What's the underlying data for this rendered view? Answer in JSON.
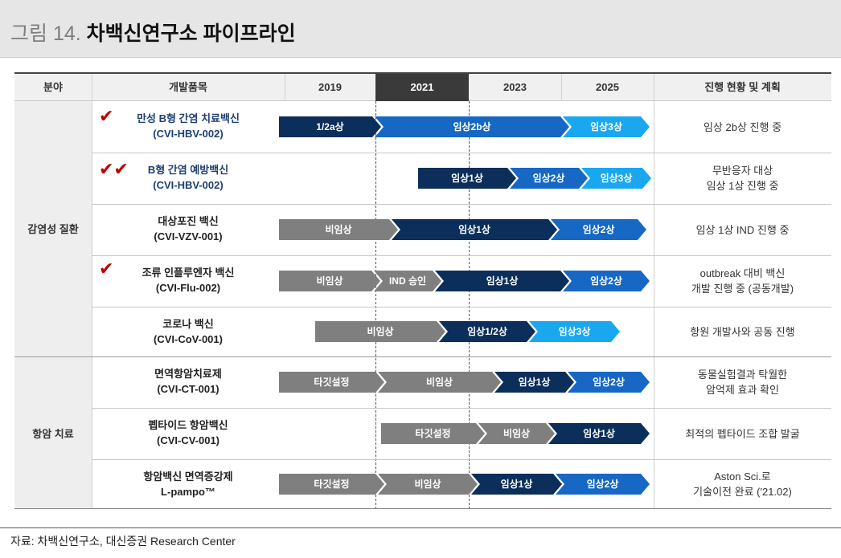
{
  "title": {
    "prefix": "그림 14.",
    "main": "차백신연구소 파이프라인"
  },
  "header": {
    "field": "분야",
    "item": "개발품목",
    "years": [
      "2019",
      "2021",
      "2023",
      "2025"
    ],
    "status": "진행 현황 및 계획"
  },
  "categories": [
    {
      "label": "감염성 질환"
    },
    {
      "label": "항암 치료"
    }
  ],
  "rows": [
    {
      "name": "만성 B형 간염 치료백신",
      "code": "(CVI-HBV-002)",
      "checks": "✔",
      "status": [
        "임상 2b상 진행 중"
      ],
      "stages": [
        {
          "label": "1/2a상",
          "color": "navy"
        },
        {
          "label": "임상2b상",
          "color": "blue"
        },
        {
          "label": "임상3상",
          "color": "light"
        }
      ]
    },
    {
      "name": "B형 간염 예방백신",
      "code": "(CVI-HBV-002)",
      "checks": "✔✔",
      "status": [
        "무반응자 대상",
        "임상 1상 진행 중"
      ],
      "stages": [
        {
          "label": "임상1상",
          "color": "navy"
        },
        {
          "label": "임상2상",
          "color": "blue"
        },
        {
          "label": "임상3상",
          "color": "light"
        }
      ]
    },
    {
      "name": "대상포진 백신",
      "code": "(CVI-VZV-001)",
      "checks": "",
      "status": [
        "임상 1상 IND 진행 중"
      ],
      "stages": [
        {
          "label": "비임상",
          "color": "gray"
        },
        {
          "label": "임상1상",
          "color": "navy"
        },
        {
          "label": "임상2상",
          "color": "blue"
        }
      ]
    },
    {
      "name": "조류 인플루엔자 백신",
      "code": "(CVI-Flu-002)",
      "checks": "✔",
      "status": [
        "outbreak 대비 백신",
        "개발 진행 중 (공동개발)"
      ],
      "stages": [
        {
          "label": "비임상",
          "color": "gray"
        },
        {
          "label": "IND 승인",
          "color": "gray"
        },
        {
          "label": "임상1상",
          "color": "navy"
        },
        {
          "label": "임상2상",
          "color": "blue"
        }
      ]
    },
    {
      "name": "코로나 백신",
      "code": "(CVI-CoV-001)",
      "checks": "",
      "status": [
        "항원 개발사와 공동 진행"
      ],
      "stages": [
        {
          "label": "비임상",
          "color": "gray"
        },
        {
          "label": "임상1/2상",
          "color": "navy"
        },
        {
          "label": "임상3상",
          "color": "light"
        }
      ]
    },
    {
      "name": "면역항암치료제",
      "code": "(CVI-CT-001)",
      "checks": "",
      "status": [
        "동물실험결과 탁월한",
        "암억제 효과 확인"
      ],
      "stages": [
        {
          "label": "타깃설정",
          "color": "gray"
        },
        {
          "label": "비임상",
          "color": "gray"
        },
        {
          "label": "임상1상",
          "color": "navy"
        },
        {
          "label": "임상2상",
          "color": "blue"
        }
      ]
    },
    {
      "name": "펩타이드 항암백신",
      "code": "(CVI-CV-001)",
      "checks": "",
      "status": [
        "최적의 펩타이드 조합 발굴"
      ],
      "stages": [
        {
          "label": "타깃설정",
          "color": "gray"
        },
        {
          "label": "비임상",
          "color": "gray"
        },
        {
          "label": "임상1상",
          "color": "navy"
        }
      ]
    },
    {
      "name": "항암백신 면역증강제",
      "code": "L-pampo™",
      "checks": "",
      "status": [
        "Aston Sci.로",
        "기술이전 완료 ('21.02)"
      ],
      "stages": [
        {
          "label": "타깃설정",
          "color": "gray"
        },
        {
          "label": "비임상",
          "color": "gray"
        },
        {
          "label": "임상1상",
          "color": "navy"
        },
        {
          "label": "임상2상",
          "color": "blue"
        }
      ]
    }
  ],
  "footer": "자료: 차백신연구소, 대신증권 Research Center"
}
